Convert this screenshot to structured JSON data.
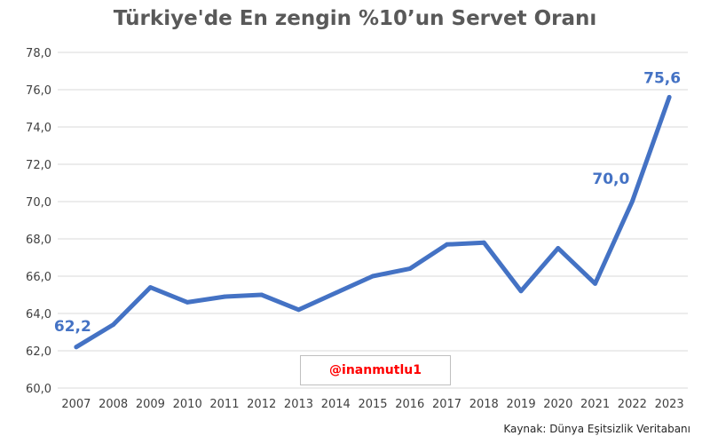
{
  "chart_data": {
    "type": "line",
    "title": "Türkiye'de En zengin %10’un Servet Oranı",
    "xlabel": "",
    "ylabel": "",
    "x": [
      "2007",
      "2008",
      "2009",
      "2010",
      "2011",
      "2012",
      "2013",
      "2014",
      "2015",
      "2016",
      "2017",
      "2018",
      "2019",
      "2020",
      "2021",
      "2022",
      "2023"
    ],
    "series": [
      {
        "values": [
          62.2,
          63.4,
          65.4,
          64.6,
          64.9,
          65.0,
          64.2,
          65.1,
          66.0,
          66.4,
          67.7,
          67.8,
          65.2,
          67.5,
          65.6,
          70.0,
          75.6
        ],
        "color": "#4472c4"
      }
    ],
    "ylim": [
      60,
      78
    ],
    "yticks": [
      "60,0",
      "62,0",
      "64,0",
      "66,0",
      "68,0",
      "70,0",
      "72,0",
      "74,0",
      "76,0",
      "78,0"
    ],
    "grid": true,
    "data_labels": [
      {
        "index": 0,
        "text": "62,2"
      },
      {
        "index": 15,
        "text": "70,0"
      },
      {
        "index": 16,
        "text": "75,6"
      }
    ]
  },
  "watermark": "@inanmutlu1",
  "source": "Kaynak: Dünya Eşitsizlik Veritabanı",
  "colors": {
    "line": "#4472c4",
    "grid": "#d9d9d9",
    "axis_text": "#404040",
    "watermark": "#ff0000"
  }
}
